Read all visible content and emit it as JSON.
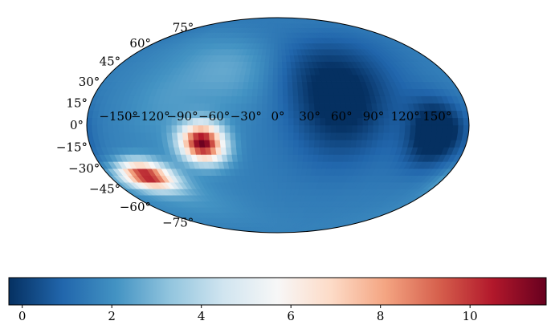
{
  "chart_data": {
    "type": "heatmap",
    "projection": "mollweide",
    "title": "",
    "grid": false,
    "longitude_tick_labels": [
      "−150°",
      "−120°",
      "−90°",
      "−60°",
      "−30°",
      "0°",
      "30°",
      "60°",
      "90°",
      "120°",
      "150°"
    ],
    "longitude_ticks": [
      -150,
      -120,
      -90,
      -60,
      -30,
      0,
      30,
      60,
      90,
      120,
      150
    ],
    "latitude_tick_labels": [
      "−75°",
      "−60°",
      "−45°",
      "−30°",
      "−15°",
      "0°",
      "15°",
      "30°",
      "45°",
      "60°",
      "75°"
    ],
    "latitude_ticks": [
      -75,
      -60,
      -45,
      -30,
      -15,
      0,
      15,
      30,
      45,
      60,
      75
    ],
    "colormap": "RdBu_r",
    "colorbar": {
      "orientation": "horizontal",
      "placement": "bottom",
      "range": [
        -0.3,
        11.7
      ],
      "ticks": [
        0,
        2,
        4,
        6,
        8,
        10
      ],
      "tick_labels": [
        "0",
        "2",
        "4",
        "6",
        "8",
        "10"
      ]
    },
    "background_value": 1.6,
    "features": [
      {
        "lon": -72,
        "lat": -12,
        "value": 11.5,
        "sigma_lon": 14,
        "sigma_lat": 9
      },
      {
        "lon": -140,
        "lat": -35,
        "value": 10.5,
        "sigma_lon": 15,
        "sigma_lat": 7
      },
      {
        "lon": -50,
        "lat": 40,
        "value": 2.6,
        "sigma_lon": 30,
        "sigma_lat": 20
      },
      {
        "lon": -110,
        "lat": 15,
        "value": 2.2,
        "sigma_lon": 25,
        "sigma_lat": 20
      },
      {
        "lon": -115,
        "lat": -50,
        "value": 2.2,
        "sigma_lon": 25,
        "sigma_lat": 15
      },
      {
        "lon": 150,
        "lat": -5,
        "value": -1.4,
        "sigma_lon": 18,
        "sigma_lat": 15
      },
      {
        "lon": 60,
        "lat": 20,
        "value": -0.8,
        "sigma_lon": 35,
        "sigma_lat": 30
      }
    ],
    "colors": {
      "outline": "#000000",
      "stops": [
        "#053061",
        "#2166ac",
        "#4393c3",
        "#92c5de",
        "#d1e5f0",
        "#f7f7f7",
        "#fddbc7",
        "#f4a582",
        "#d6604d",
        "#b2182b",
        "#67001f"
      ]
    }
  }
}
